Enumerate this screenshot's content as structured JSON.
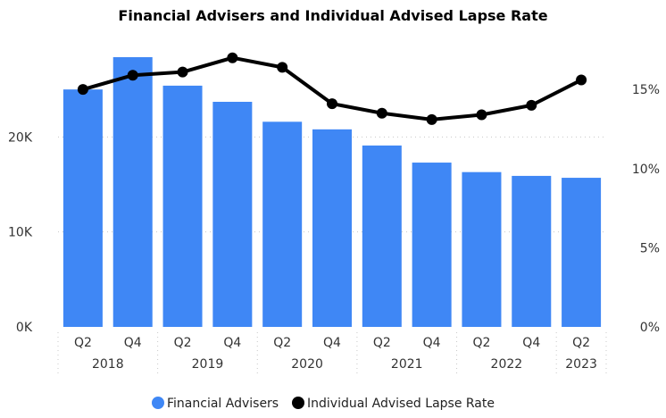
{
  "chart_data": {
    "type": "bar",
    "title": "Financial Advisers and Individual Advised Lapse Rate",
    "categories": [
      "Q2 2018",
      "Q4 2018",
      "Q2 2019",
      "Q4 2019",
      "Q2 2020",
      "Q4 2020",
      "Q2 2021",
      "Q4 2021",
      "Q2 2022",
      "Q4 2022",
      "Q2 2023"
    ],
    "quarter_labels": [
      "Q2",
      "Q4",
      "Q2",
      "Q4",
      "Q2",
      "Q4",
      "Q2",
      "Q4",
      "Q2",
      "Q4",
      "Q2"
    ],
    "year_labels": [
      "2018",
      "2019",
      "2020",
      "2021",
      "2022",
      "2023"
    ],
    "series": [
      {
        "name": "Financial Advisers",
        "kind": "bar",
        "axis": "left",
        "values": [
          25000,
          28400,
          25400,
          23700,
          21600,
          20800,
          19100,
          17300,
          16300,
          15900,
          15700
        ]
      },
      {
        "name": "Individual Advised Lapse Rate",
        "kind": "line",
        "axis": "right",
        "values": [
          15.0,
          15.9,
          16.1,
          17.0,
          16.4,
          14.1,
          13.5,
          13.1,
          13.4,
          14.0,
          15.6
        ]
      }
    ],
    "left_axis": {
      "ticks": [
        0,
        10000,
        20000
      ],
      "tick_labels": [
        "0K",
        "10K",
        "20K"
      ],
      "ylim": [
        0,
        30000
      ]
    },
    "right_axis": {
      "ticks": [
        0,
        5,
        10,
        15
      ],
      "tick_labels": [
        "0%",
        "5%",
        "10%",
        "15%"
      ],
      "ylim": [
        0,
        18
      ]
    },
    "xlabel": "",
    "ylabel": "",
    "legend": {
      "position": "bottom",
      "entries": [
        "Financial Advisers",
        "Individual Advised Lapse Rate"
      ]
    },
    "colors": {
      "bar": "#3f87f5",
      "line": "#000000"
    }
  }
}
